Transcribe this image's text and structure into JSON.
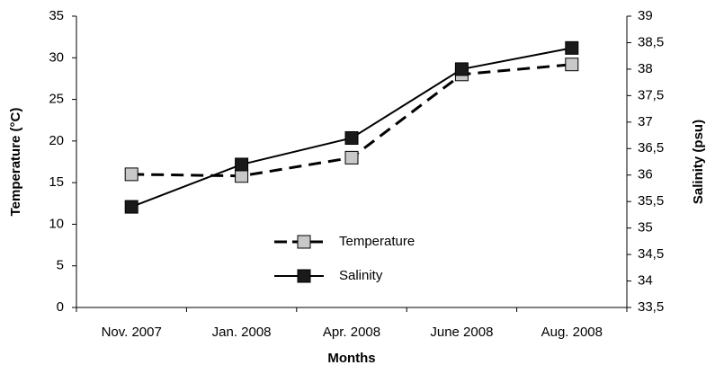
{
  "chart_data": {
    "type": "line",
    "x_label": "Months",
    "y_label": "Temperature (°C)",
    "y2_label": "Salinity (psu)",
    "categories": [
      "Nov. 2007",
      "Jan. 2008",
      "Apr. 2008",
      "June 2008",
      "Aug. 2008"
    ],
    "series": [
      {
        "name": "Temperature",
        "color": "#000000",
        "marker_color": "#c8c8c8",
        "line_style": "dashed",
        "values": [
          16,
          15.8,
          18,
          28,
          29.2
        ]
      },
      {
        "name": "Salinity",
        "color": "#000000",
        "marker_color": "#1a1a1a",
        "line_style": "solid",
        "axis": "y2",
        "values": [
          35.4,
          36.2,
          36.7,
          38.0,
          38.4
        ]
      }
    ],
    "ylim": [
      0,
      35
    ],
    "yticks": [
      0,
      5,
      10,
      15,
      20,
      25,
      30,
      35
    ],
    "y2lim": [
      33.5,
      39
    ],
    "y2ticks": [
      {
        "value": 33.5,
        "label": "33,5"
      },
      34,
      {
        "value": 34.5,
        "label": "34,5"
      },
      35,
      {
        "value": 35.5,
        "label": "35,5"
      },
      36,
      {
        "value": 36.5,
        "label": "36,5"
      },
      37,
      {
        "value": 37.5,
        "label": "37,5"
      },
      38,
      {
        "value": 38.5,
        "label": "38,5"
      },
      39
    ],
    "grid": false,
    "legend": "center"
  }
}
